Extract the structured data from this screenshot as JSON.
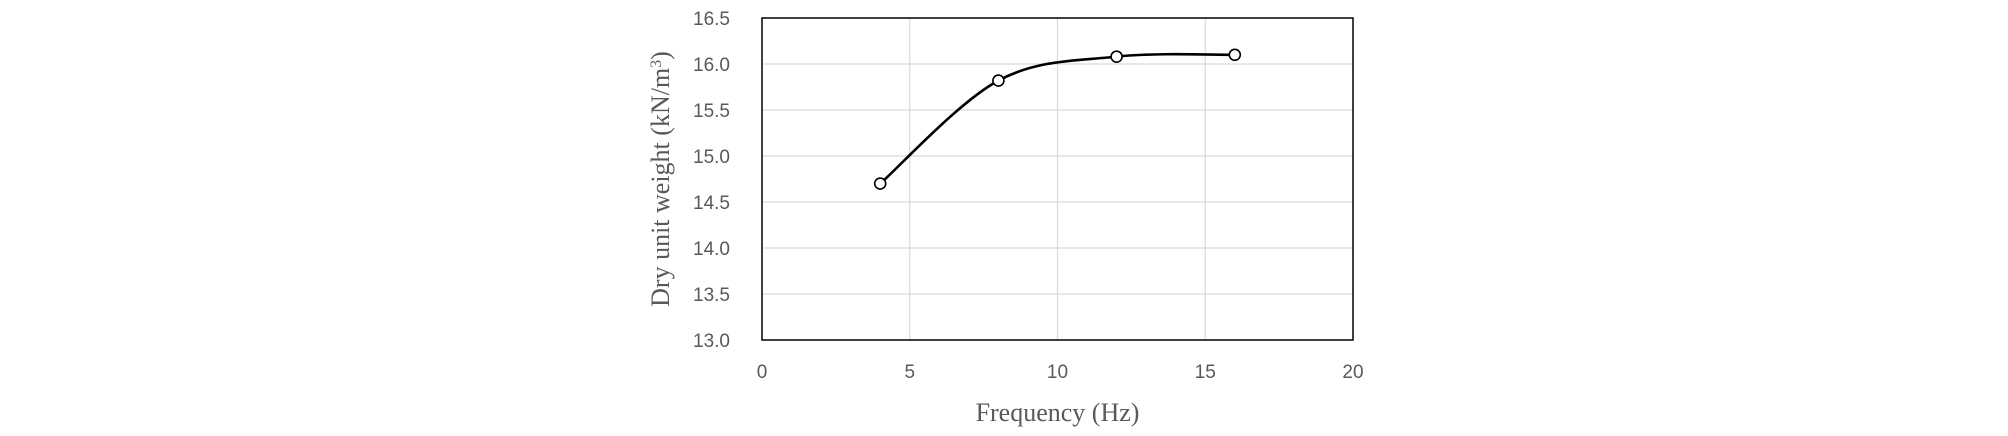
{
  "chart_data": {
    "type": "scatter",
    "xlabel": "Frequency (Hz)",
    "ylabel": "Dry unit weight  (kN/m",
    "ylabel_sup": "3",
    "ylabel_close": ")",
    "xlim": [
      0,
      20
    ],
    "ylim": [
      13.0,
      16.5
    ],
    "x_ticks": [
      0,
      5,
      10,
      15,
      20
    ],
    "x_tick_labels": [
      "0",
      "5",
      "10",
      "15",
      "20"
    ],
    "y_ticks": [
      13.0,
      13.5,
      14.0,
      14.5,
      15.0,
      15.5,
      16.0,
      16.5
    ],
    "y_tick_labels": [
      "13.0",
      "13.5",
      "14.0",
      "14.5",
      "15.0",
      "15.5",
      "16.0",
      "16.5"
    ],
    "grid": true,
    "smooth_line": true,
    "marker": "open-circle",
    "series": [
      {
        "x": [
          4,
          8,
          12,
          16
        ],
        "y": [
          14.7,
          15.82,
          16.08,
          16.1
        ]
      }
    ],
    "colors": {
      "line": "#000000",
      "marker_fill": "#ffffff",
      "grid": "#d9d9d9",
      "text": "#595959"
    }
  }
}
